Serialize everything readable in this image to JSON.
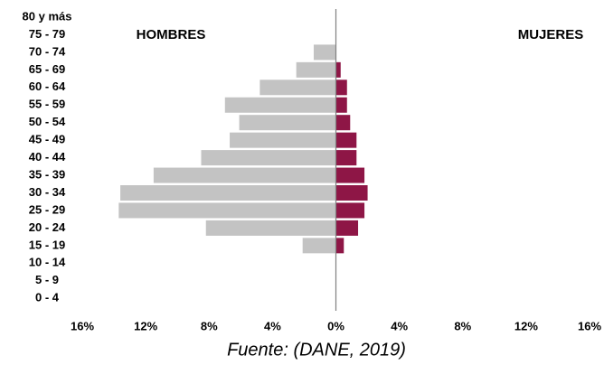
{
  "chart_data": {
    "type": "pyramid",
    "categories": [
      "80 y más",
      "75 - 79",
      "70 - 74",
      "65 - 69",
      "60 - 64",
      "55 - 59",
      "50 - 54",
      "45 - 49",
      "40 - 44",
      "35 - 39",
      "30 - 34",
      "25 - 29",
      "20 - 24",
      "15 - 19",
      "10 - 14",
      "5 - 9",
      "0 - 4"
    ],
    "series": [
      {
        "name": "HOMBRES",
        "color": "#c3c3c3",
        "values": [
          0,
          0,
          -1.4,
          -2.5,
          -4.8,
          -7.0,
          -6.1,
          -6.7,
          -8.5,
          -11.5,
          -13.6,
          -13.7,
          -8.2,
          -2.1,
          0,
          0,
          0
        ]
      },
      {
        "name": "MUJERES",
        "color": "#8e1646",
        "values": [
          0,
          0,
          0,
          0.3,
          0.7,
          0.7,
          0.9,
          1.3,
          1.3,
          1.8,
          2.0,
          1.8,
          1.4,
          0.5,
          0,
          0,
          0
        ]
      }
    ],
    "xlim": [
      -16,
      16
    ],
    "xticks": [
      {
        "value": -16,
        "label": "16%"
      },
      {
        "value": -12,
        "label": "12%"
      },
      {
        "value": -8,
        "label": "8%"
      },
      {
        "value": -4,
        "label": "4%"
      },
      {
        "value": 0,
        "label": "0%"
      },
      {
        "value": 4,
        "label": "4%"
      },
      {
        "value": 8,
        "label": "8%"
      },
      {
        "value": 12,
        "label": "12%"
      },
      {
        "value": 16,
        "label": "16%"
      }
    ],
    "source": "Fuente: (DANE, 2019)"
  }
}
